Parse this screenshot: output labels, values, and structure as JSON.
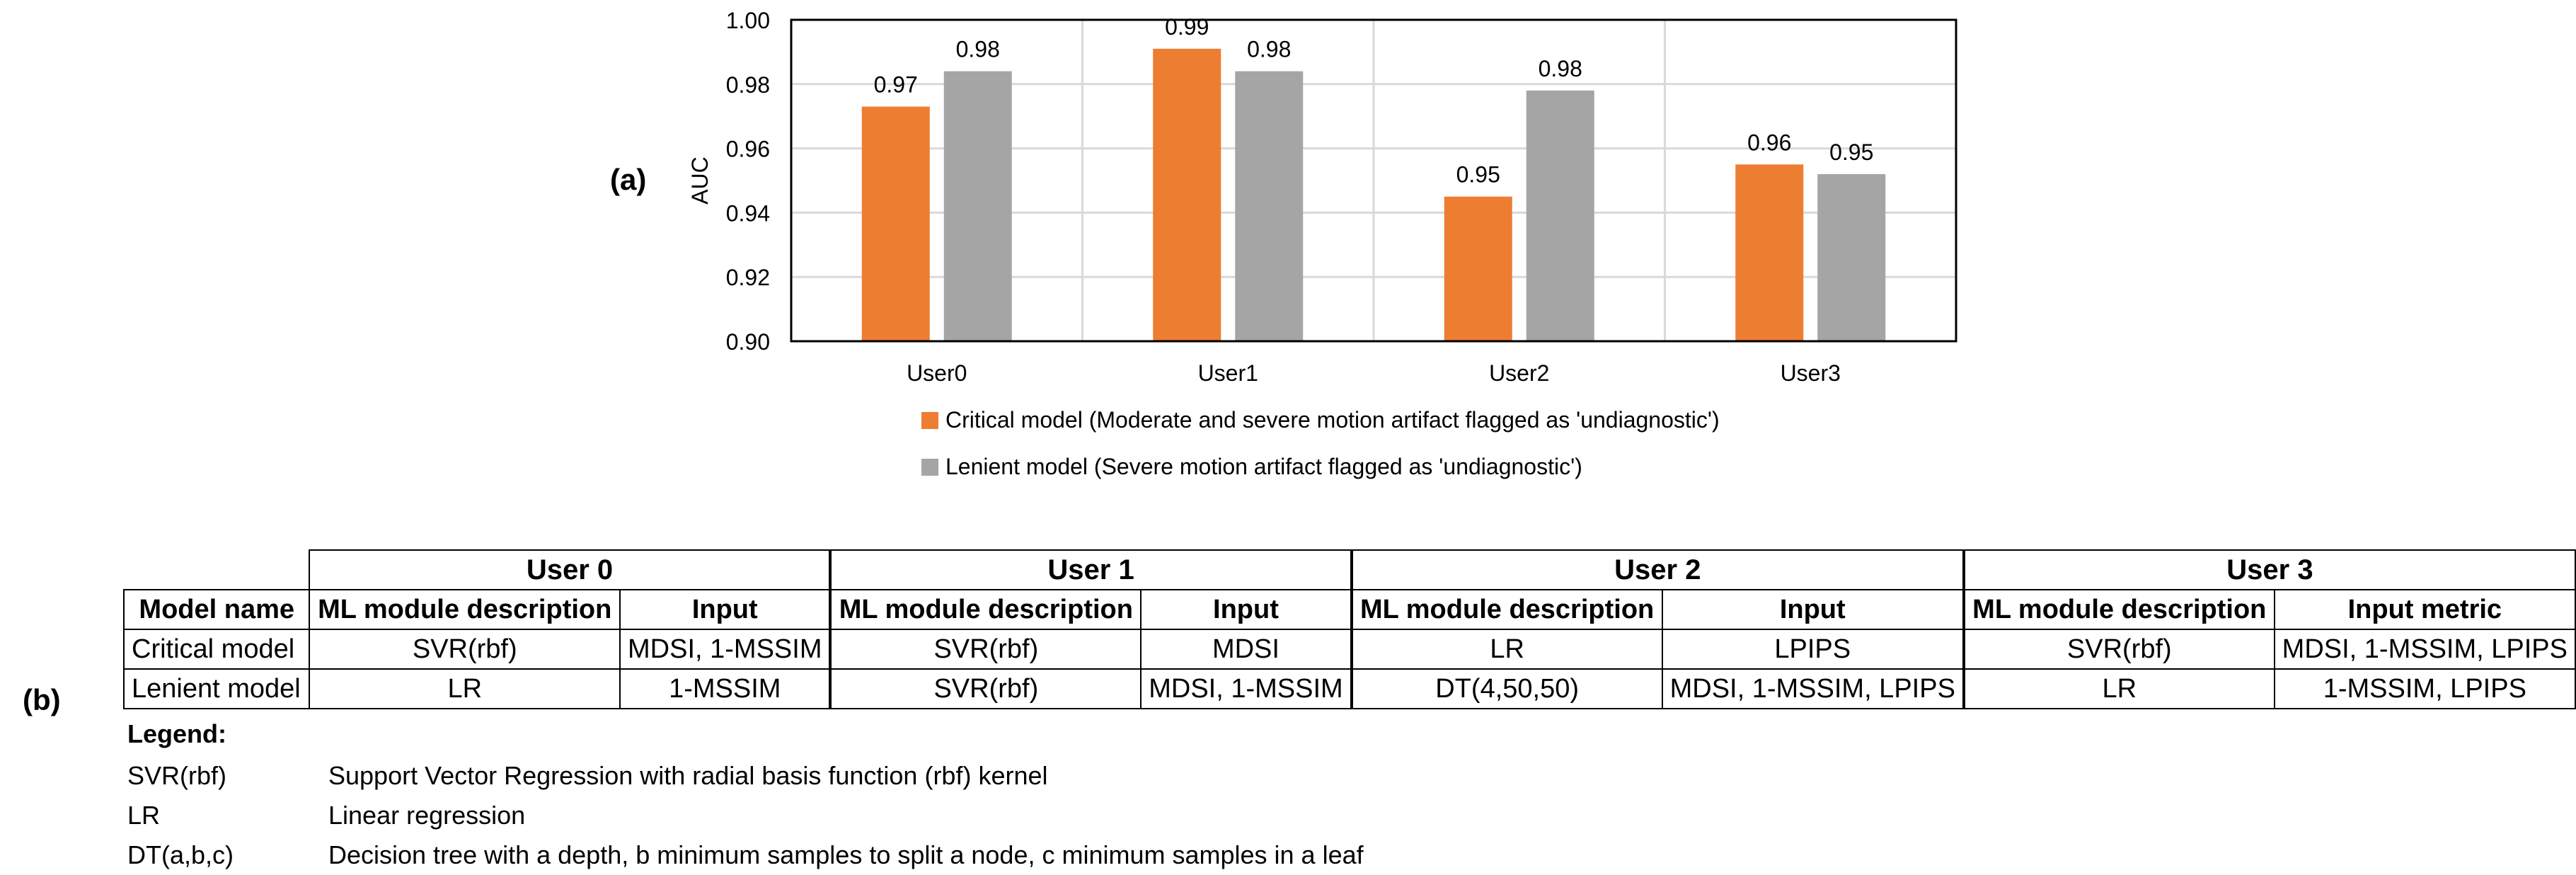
{
  "panel_a_label": "(a)",
  "panel_b_label": "(b)",
  "chart_data": {
    "type": "bar",
    "categories": [
      "User0",
      "User1",
      "User2",
      "User3"
    ],
    "series": [
      {
        "name": "Critical model (Moderate and severe motion artifact flagged as 'undiagnostic')",
        "values": [
          0.973,
          0.991,
          0.945,
          0.955
        ],
        "labels": [
          "0.97",
          "0.99",
          "0.95",
          "0.96"
        ],
        "color": "#ED7D31"
      },
      {
        "name": "Lenient model (Severe motion artifact flagged as 'undiagnostic')",
        "values": [
          0.984,
          0.984,
          0.978,
          0.952
        ],
        "labels": [
          "0.98",
          "0.98",
          "0.98",
          "0.95"
        ],
        "color": "#A5A5A5"
      }
    ],
    "ylabel": "AUC",
    "xlabel": "",
    "ylim": [
      0.9,
      1.0
    ],
    "yticks": [
      "0.90",
      "0.92",
      "0.94",
      "0.96",
      "0.98",
      "1.00"
    ],
    "grid": true,
    "legend_position": "bottom"
  },
  "table": {
    "users": [
      "User 0",
      "User 1",
      "User 2",
      "User 3"
    ],
    "header": {
      "model_name": "Model name",
      "cols": [
        "ML module description",
        "Input",
        "ML module description",
        "Input",
        "ML module description",
        "Input",
        "ML module description",
        "Input metric"
      ]
    },
    "rows": [
      {
        "name": "Critical model",
        "cells": [
          "SVR(rbf)",
          "MDSI, 1-MSSIM",
          "SVR(rbf)",
          "MDSI",
          "LR",
          "LPIPS",
          "SVR(rbf)",
          "MDSI, 1-MSSIM, LPIPS"
        ]
      },
      {
        "name": "Lenient model",
        "cells": [
          "LR",
          "1-MSSIM",
          "SVR(rbf)",
          "MDSI, 1-MSSIM",
          "DT(4,50,50)",
          "MDSI, 1-MSSIM, LPIPS",
          "LR",
          "1-MSSIM, LPIPS"
        ]
      }
    ]
  },
  "legend": {
    "title": "Legend:",
    "items": [
      {
        "abbr": "SVR(rbf)",
        "desc": "Support Vector Regression with radial basis function (rbf) kernel"
      },
      {
        "abbr": "LR",
        "desc": "Linear regression"
      },
      {
        "abbr": "DT(a,b,c)",
        "desc": "Decision tree with a depth, b minimum samples to split a node, c minimum samples in a leaf"
      }
    ]
  }
}
